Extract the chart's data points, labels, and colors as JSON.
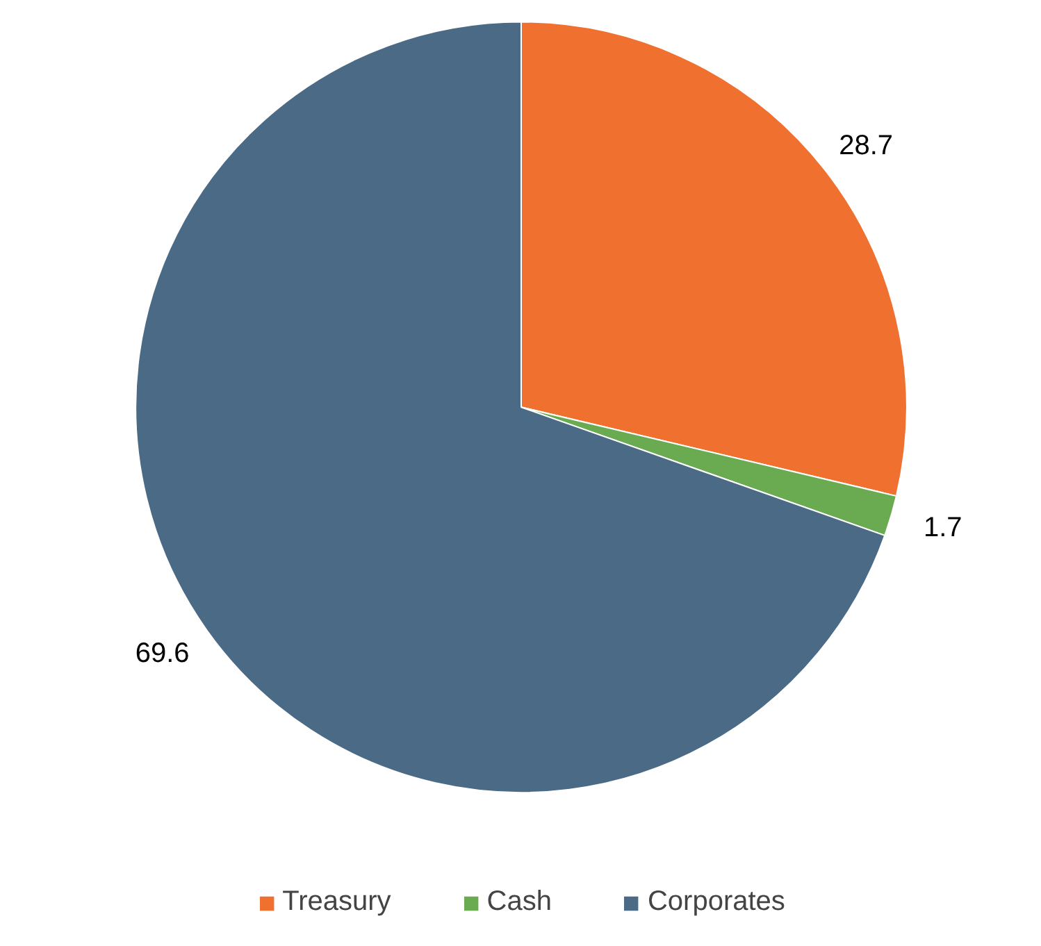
{
  "chart_data": {
    "type": "pie",
    "categories": [
      "Treasury",
      "Cash",
      "Corporates"
    ],
    "values": [
      28.7,
      1.7,
      69.6
    ],
    "colors": [
      "#f07030",
      "#6aaa50",
      "#4a6a85"
    ],
    "data_labels": true,
    "legend": "bottom"
  }
}
